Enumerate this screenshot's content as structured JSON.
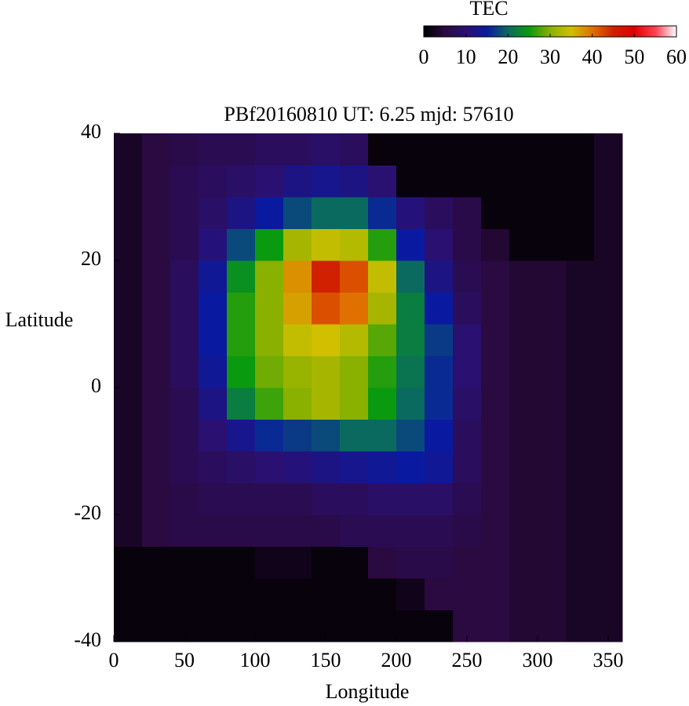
{
  "chart_data": {
    "type": "heatmap",
    "title": "PBf20160810  UT: 6.25  mjd: 57610",
    "x_label": "Longitude",
    "y_label": "Latitude",
    "colorbar_label": "TEC",
    "xlim": [
      0,
      360
    ],
    "xticks": [
      0,
      50,
      100,
      150,
      200,
      250,
      300,
      350
    ],
    "ylim": [
      -40,
      40
    ],
    "yticks": [
      -40,
      -20,
      0,
      20,
      40
    ],
    "clim": [
      0,
      60
    ],
    "cticks": [
      0,
      10,
      20,
      30,
      40,
      50,
      60
    ],
    "colorscale": [
      [
        0,
        "#000000"
      ],
      [
        5,
        "#2a0a40"
      ],
      [
        10,
        "#2a1070"
      ],
      [
        15,
        "#0a1aa0"
      ],
      [
        20,
        "#0a6a60"
      ],
      [
        25,
        "#0a9a10"
      ],
      [
        30,
        "#8ab000"
      ],
      [
        35,
        "#d0c000"
      ],
      [
        40,
        "#e07000"
      ],
      [
        45,
        "#d02000"
      ],
      [
        50,
        "#e00000"
      ],
      [
        55,
        "#ff4050"
      ],
      [
        60,
        "#ffffff"
      ]
    ],
    "xbins": [
      0,
      20,
      40,
      60,
      80,
      100,
      120,
      140,
      160,
      180,
      200,
      220,
      240,
      260,
      280,
      300,
      320,
      340,
      360
    ],
    "ybins": [
      -40,
      -35,
      -30,
      -25,
      -20,
      -15,
      -10,
      -5,
      0,
      5,
      10,
      15,
      20,
      25,
      30,
      35,
      40
    ],
    "values": [
      [
        1,
        1,
        1,
        1,
        1,
        1,
        1,
        1,
        1,
        1,
        1,
        1,
        5,
        5,
        4,
        4,
        3,
        3
      ],
      [
        1,
        1,
        1,
        1,
        1,
        1,
        1,
        1,
        1,
        1,
        2,
        5,
        5,
        5,
        4,
        4,
        3,
        3
      ],
      [
        1,
        1,
        1,
        1,
        1,
        2,
        2,
        1,
        1,
        5,
        6,
        6,
        5,
        5,
        4,
        4,
        3,
        3
      ],
      [
        3,
        5,
        6,
        6,
        6,
        6,
        6,
        6,
        7,
        7,
        7,
        7,
        6,
        5,
        4,
        4,
        3,
        3
      ],
      [
        3,
        5,
        6,
        7,
        7,
        7,
        7,
        8,
        8,
        9,
        9,
        9,
        7,
        5,
        4,
        4,
        3,
        3
      ],
      [
        3,
        5,
        7,
        8,
        9,
        10,
        11,
        12,
        13,
        14,
        15,
        14,
        8,
        5,
        4,
        4,
        3,
        3
      ],
      [
        3,
        5,
        7,
        10,
        13,
        16,
        17,
        18,
        20,
        20,
        18,
        15,
        8,
        5,
        4,
        4,
        3,
        3
      ],
      [
        3,
        5,
        7,
        12,
        22,
        27,
        30,
        32,
        30,
        25,
        20,
        16,
        9,
        5,
        4,
        4,
        3,
        3
      ],
      [
        3,
        5,
        8,
        14,
        25,
        29,
        31,
        32,
        30,
        26,
        21,
        16,
        10,
        5,
        4,
        4,
        3,
        3
      ],
      [
        3,
        5,
        8,
        15,
        26,
        30,
        34,
        35,
        33,
        28,
        22,
        17,
        10,
        5,
        4,
        4,
        3,
        3
      ],
      [
        3,
        5,
        8,
        15,
        26,
        30,
        37,
        42,
        40,
        32,
        22,
        15,
        8,
        5,
        4,
        4,
        3,
        3
      ],
      [
        3,
        5,
        8,
        14,
        24,
        30,
        38,
        45,
        42,
        34,
        20,
        12,
        7,
        5,
        4,
        4,
        3,
        3
      ],
      [
        3,
        5,
        7,
        11,
        18,
        25,
        32,
        34,
        33,
        26,
        15,
        10,
        6,
        4,
        1,
        1,
        1,
        3
      ],
      [
        3,
        5,
        7,
        9,
        12,
        15,
        18,
        20,
        20,
        16,
        11,
        8,
        6,
        1,
        1,
        1,
        1,
        3
      ],
      [
        3,
        5,
        7,
        8,
        9,
        10,
        12,
        13,
        12,
        10,
        1,
        1,
        1,
        1,
        1,
        1,
        1,
        3
      ],
      [
        3,
        5,
        6,
        7,
        7,
        8,
        8,
        9,
        8,
        1,
        1,
        1,
        1,
        1,
        1,
        1,
        1,
        3
      ]
    ]
  }
}
